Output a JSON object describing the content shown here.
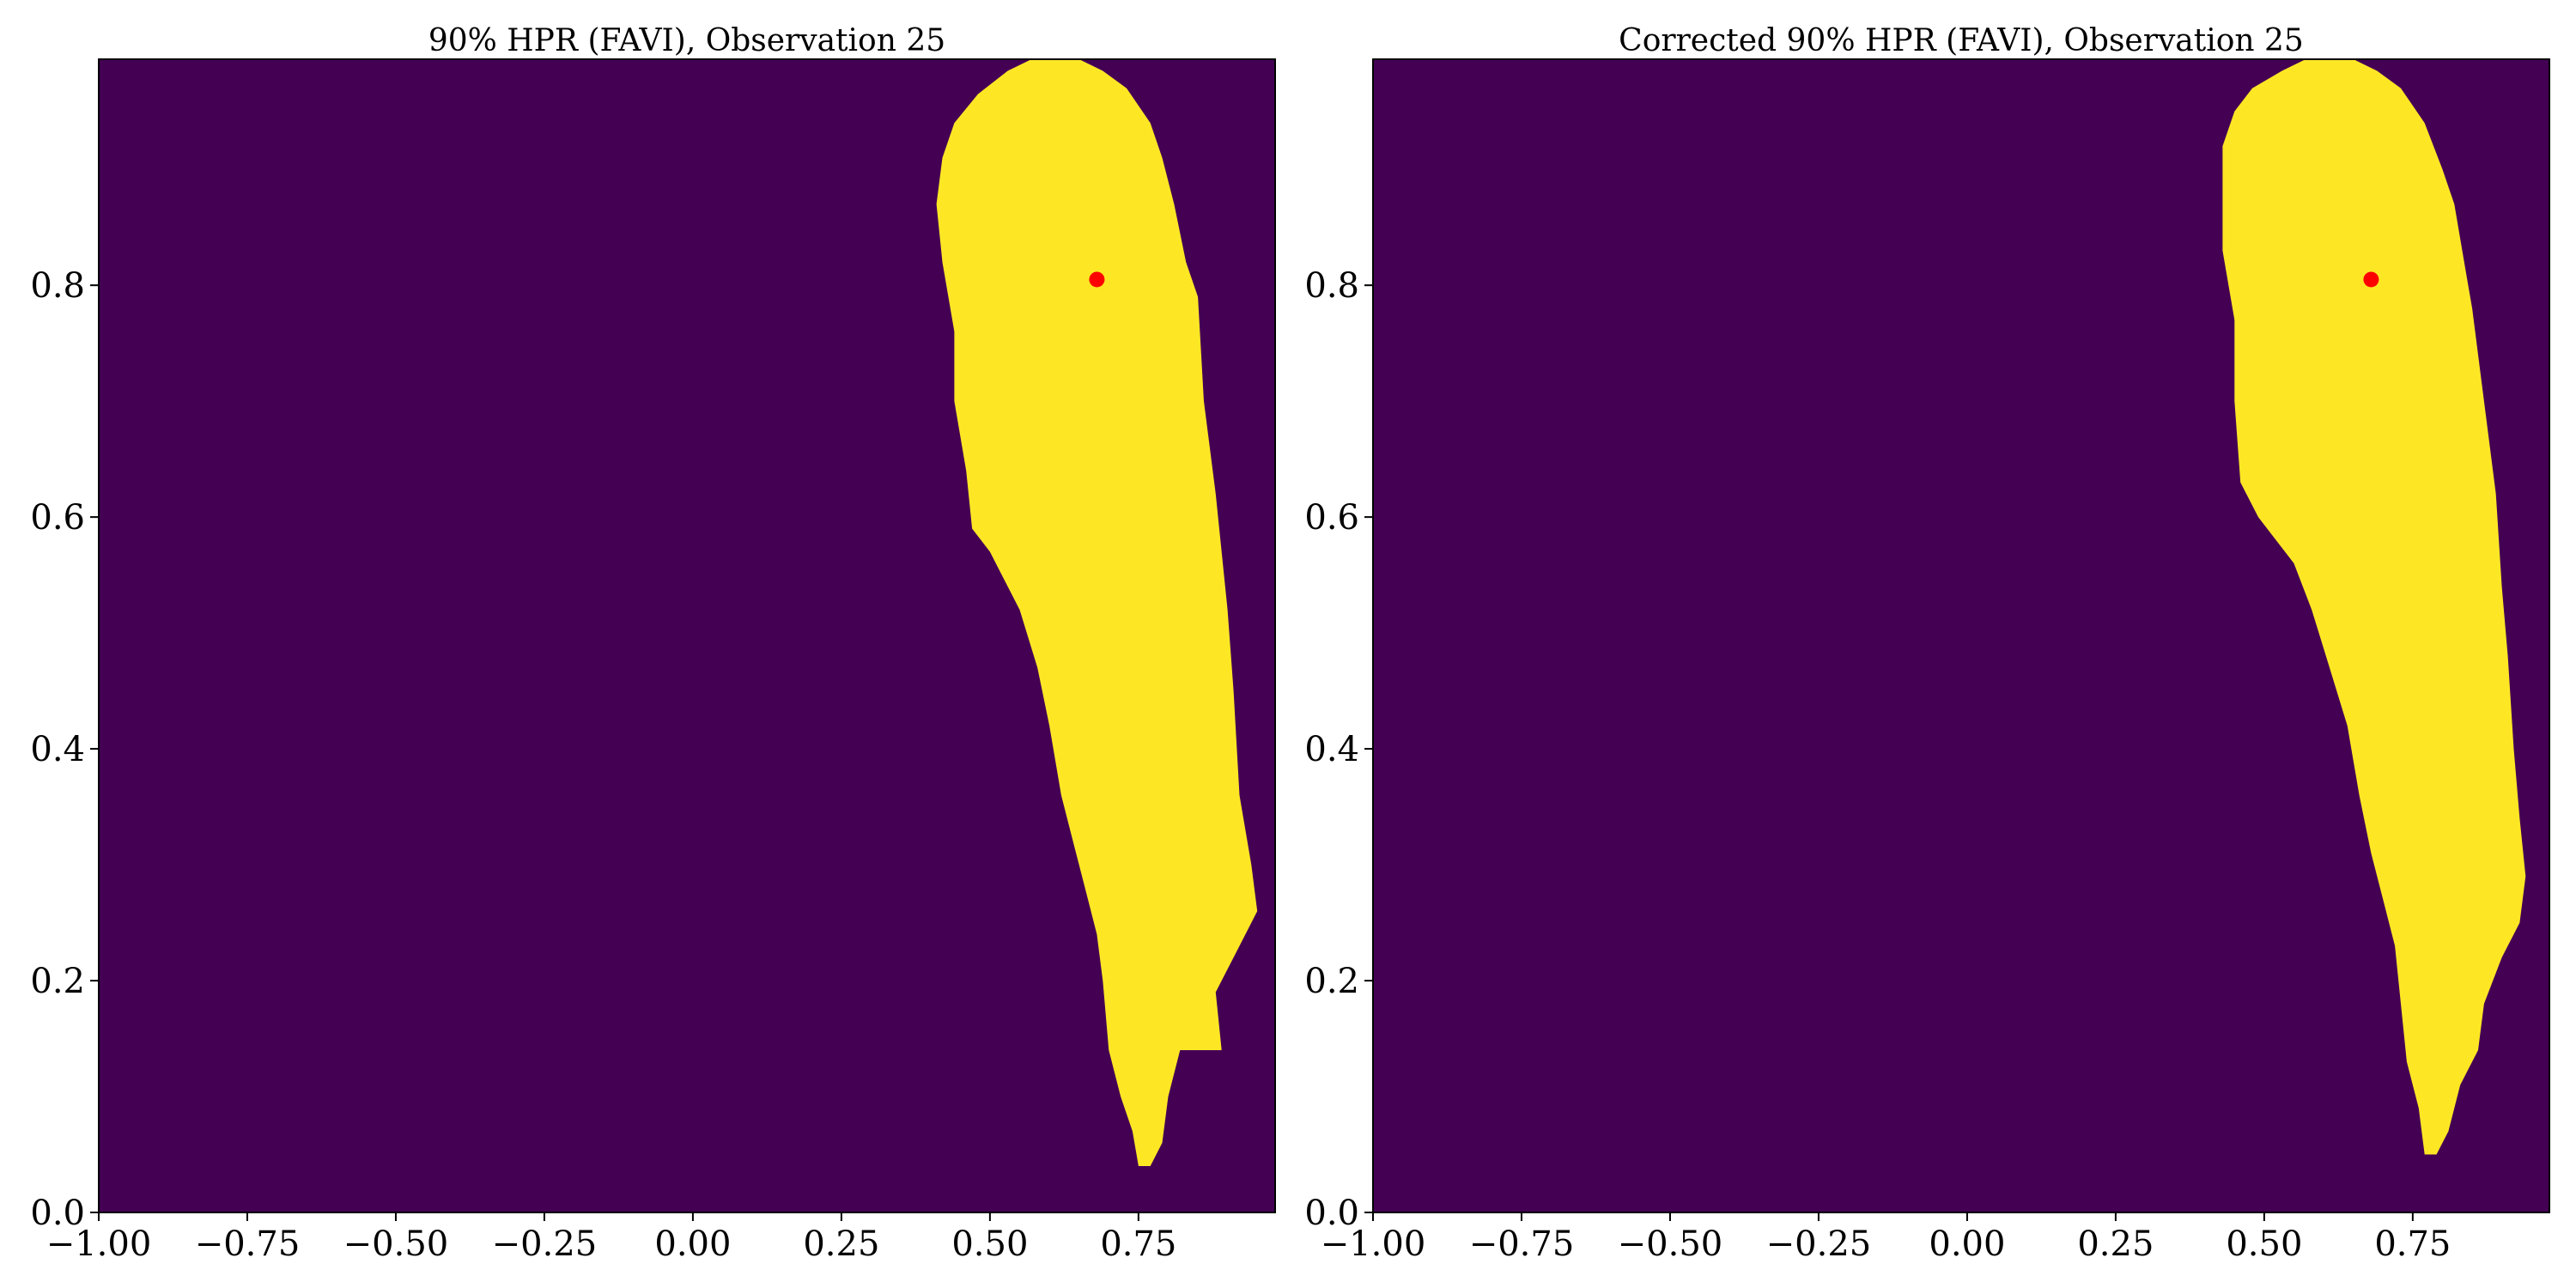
{
  "colors": {
    "background": "#440154",
    "region": "#fde725",
    "marker": "#ff0000",
    "axis": "#000000"
  },
  "chart_data": [
    {
      "type": "heatmap",
      "title": "90% HPR (FAVI), Observation 25",
      "xlabel": "",
      "ylabel": "",
      "xlim": [
        -1.0,
        0.98
      ],
      "ylim": [
        0.0,
        0.995
      ],
      "x_ticks": [
        -1.0,
        -0.75,
        -0.5,
        -0.25,
        0.0,
        0.25,
        0.5,
        0.75
      ],
      "x_tick_labels": [
        "−1.00",
        "−0.75",
        "−0.50",
        "−0.25",
        "0.00",
        "0.25",
        "0.50",
        "0.75"
      ],
      "y_ticks": [
        0.0,
        0.2,
        0.4,
        0.6,
        0.8
      ],
      "y_tick_labels": [
        "0.0",
        "0.2",
        "0.4",
        "0.6",
        "0.8"
      ],
      "grid": false,
      "point": {
        "x": 0.68,
        "y": 0.805
      },
      "region_outline": [
        [
          0.57,
          0.995
        ],
        [
          0.65,
          0.995
        ],
        [
          0.69,
          0.985
        ],
        [
          0.73,
          0.97
        ],
        [
          0.77,
          0.94
        ],
        [
          0.79,
          0.91
        ],
        [
          0.81,
          0.87
        ],
        [
          0.83,
          0.82
        ],
        [
          0.85,
          0.79
        ],
        [
          0.86,
          0.7
        ],
        [
          0.88,
          0.62
        ],
        [
          0.9,
          0.52
        ],
        [
          0.91,
          0.45
        ],
        [
          0.92,
          0.36
        ],
        [
          0.94,
          0.3
        ],
        [
          0.95,
          0.26
        ],
        [
          0.92,
          0.23
        ],
        [
          0.88,
          0.19
        ],
        [
          0.89,
          0.14
        ],
        [
          0.82,
          0.14
        ],
        [
          0.8,
          0.1
        ],
        [
          0.79,
          0.06
        ],
        [
          0.77,
          0.04
        ],
        [
          0.75,
          0.04
        ],
        [
          0.74,
          0.07
        ],
        [
          0.72,
          0.1
        ],
        [
          0.7,
          0.14
        ],
        [
          0.69,
          0.2
        ],
        [
          0.68,
          0.24
        ],
        [
          0.66,
          0.28
        ],
        [
          0.64,
          0.32
        ],
        [
          0.62,
          0.36
        ],
        [
          0.6,
          0.42
        ],
        [
          0.58,
          0.47
        ],
        [
          0.55,
          0.52
        ],
        [
          0.52,
          0.55
        ],
        [
          0.5,
          0.57
        ],
        [
          0.47,
          0.59
        ],
        [
          0.46,
          0.64
        ],
        [
          0.44,
          0.7
        ],
        [
          0.44,
          0.76
        ],
        [
          0.42,
          0.82
        ],
        [
          0.41,
          0.87
        ],
        [
          0.42,
          0.91
        ],
        [
          0.44,
          0.94
        ],
        [
          0.48,
          0.965
        ],
        [
          0.53,
          0.985
        ]
      ]
    },
    {
      "type": "heatmap",
      "title": "Corrected 90% HPR (FAVI), Observation 25",
      "xlabel": "",
      "ylabel": "",
      "xlim": [
        -1.0,
        0.98
      ],
      "ylim": [
        0.0,
        0.995
      ],
      "x_ticks": [
        -1.0,
        -0.75,
        -0.5,
        -0.25,
        0.0,
        0.25,
        0.5,
        0.75
      ],
      "x_tick_labels": [
        "−1.00",
        "−0.75",
        "−0.50",
        "−0.25",
        "0.00",
        "0.25",
        "0.50",
        "0.75"
      ],
      "y_ticks": [
        0.0,
        0.2,
        0.4,
        0.6,
        0.8
      ],
      "y_tick_labels": [
        "0.0",
        "0.2",
        "0.4",
        "0.6",
        "0.8"
      ],
      "grid": false,
      "point": {
        "x": 0.68,
        "y": 0.805
      },
      "region_outline": [
        [
          0.57,
          0.995
        ],
        [
          0.65,
          0.995
        ],
        [
          0.69,
          0.985
        ],
        [
          0.73,
          0.97
        ],
        [
          0.77,
          0.94
        ],
        [
          0.8,
          0.9
        ],
        [
          0.82,
          0.87
        ],
        [
          0.84,
          0.81
        ],
        [
          0.85,
          0.78
        ],
        [
          0.87,
          0.7
        ],
        [
          0.89,
          0.62
        ],
        [
          0.9,
          0.54
        ],
        [
          0.91,
          0.48
        ],
        [
          0.92,
          0.4
        ],
        [
          0.93,
          0.34
        ],
        [
          0.94,
          0.29
        ],
        [
          0.93,
          0.25
        ],
        [
          0.9,
          0.22
        ],
        [
          0.87,
          0.18
        ],
        [
          0.86,
          0.14
        ],
        [
          0.83,
          0.11
        ],
        [
          0.81,
          0.07
        ],
        [
          0.79,
          0.05
        ],
        [
          0.77,
          0.05
        ],
        [
          0.76,
          0.09
        ],
        [
          0.74,
          0.13
        ],
        [
          0.73,
          0.18
        ],
        [
          0.72,
          0.23
        ],
        [
          0.7,
          0.27
        ],
        [
          0.68,
          0.31
        ],
        [
          0.66,
          0.36
        ],
        [
          0.64,
          0.42
        ],
        [
          0.61,
          0.47
        ],
        [
          0.58,
          0.52
        ],
        [
          0.55,
          0.56
        ],
        [
          0.52,
          0.58
        ],
        [
          0.49,
          0.6
        ],
        [
          0.46,
          0.63
        ],
        [
          0.45,
          0.7
        ],
        [
          0.45,
          0.77
        ],
        [
          0.43,
          0.83
        ],
        [
          0.43,
          0.88
        ],
        [
          0.43,
          0.92
        ],
        [
          0.45,
          0.95
        ],
        [
          0.48,
          0.97
        ],
        [
          0.53,
          0.985
        ]
      ]
    }
  ]
}
